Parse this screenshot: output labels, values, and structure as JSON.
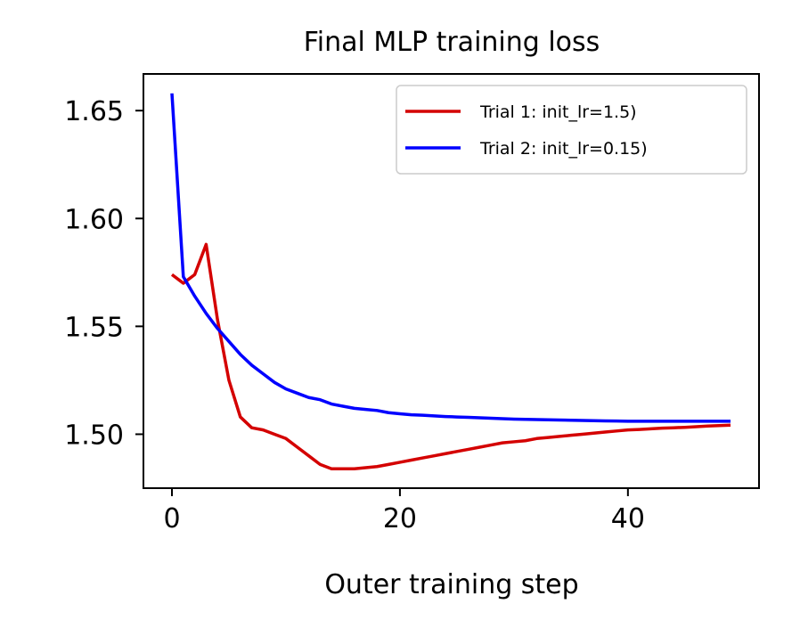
{
  "chart_data": {
    "type": "line",
    "title": "Final MLP training loss",
    "xlabel": "Outer training step",
    "ylabel": "",
    "xlim": [
      -2.5,
      51.5
    ],
    "ylim": [
      1.475,
      1.667
    ],
    "x_ticks": [
      0,
      20,
      40
    ],
    "y_ticks": [
      1.5,
      1.55,
      1.6,
      1.65
    ],
    "x_tick_labels": [
      "0",
      "20",
      "40"
    ],
    "y_tick_labels": [
      "1.50",
      "1.55",
      "1.60",
      "1.65"
    ],
    "grid": false,
    "legend_position": "top-right",
    "series": [
      {
        "name": "Trial 1: init_lr=1.5)",
        "color": "#d40000",
        "x": [
          0,
          1,
          2,
          3,
          4,
          5,
          6,
          7,
          8,
          9,
          10,
          11,
          12,
          13,
          14,
          15,
          16,
          17,
          18,
          19,
          20,
          21,
          22,
          23,
          24,
          25,
          26,
          27,
          28,
          29,
          30,
          31,
          32,
          33,
          34,
          35,
          36,
          37,
          38,
          39,
          40,
          41,
          42,
          43,
          44,
          45,
          46,
          47,
          48,
          49
        ],
        "y": [
          1.574,
          1.57,
          1.574,
          1.588,
          1.553,
          1.525,
          1.508,
          1.503,
          1.502,
          1.5,
          1.498,
          1.494,
          1.49,
          1.486,
          1.484,
          1.484,
          1.484,
          1.4845,
          1.485,
          1.486,
          1.487,
          1.488,
          1.489,
          1.49,
          1.491,
          1.492,
          1.493,
          1.494,
          1.495,
          1.496,
          1.4965,
          1.497,
          1.498,
          1.4985,
          1.499,
          1.4995,
          1.5,
          1.5005,
          1.501,
          1.5015,
          1.502,
          1.5022,
          1.5025,
          1.5028,
          1.503,
          1.5032,
          1.5035,
          1.5038,
          1.504,
          1.5042
        ]
      },
      {
        "name": "Trial 2: init_lr=0.15)",
        "color": "#0000ff",
        "x": [
          0,
          1,
          2,
          3,
          4,
          5,
          6,
          7,
          8,
          9,
          10,
          11,
          12,
          13,
          14,
          15,
          16,
          17,
          18,
          19,
          20,
          21,
          22,
          23,
          24,
          25,
          26,
          27,
          28,
          29,
          30,
          31,
          32,
          33,
          34,
          35,
          36,
          37,
          38,
          39,
          40,
          41,
          42,
          43,
          44,
          45,
          46,
          47,
          48,
          49
        ],
        "y": [
          1.658,
          1.573,
          1.564,
          1.556,
          1.549,
          1.543,
          1.537,
          1.532,
          1.528,
          1.524,
          1.521,
          1.519,
          1.517,
          1.516,
          1.514,
          1.513,
          1.512,
          1.5115,
          1.511,
          1.51,
          1.5095,
          1.509,
          1.5088,
          1.5085,
          1.5082,
          1.508,
          1.5078,
          1.5076,
          1.5074,
          1.5072,
          1.507,
          1.5069,
          1.5068,
          1.5067,
          1.5066,
          1.5065,
          1.5064,
          1.5063,
          1.5062,
          1.5061,
          1.506,
          1.506,
          1.506,
          1.506,
          1.506,
          1.506,
          1.506,
          1.506,
          1.506,
          1.506
        ]
      }
    ]
  }
}
